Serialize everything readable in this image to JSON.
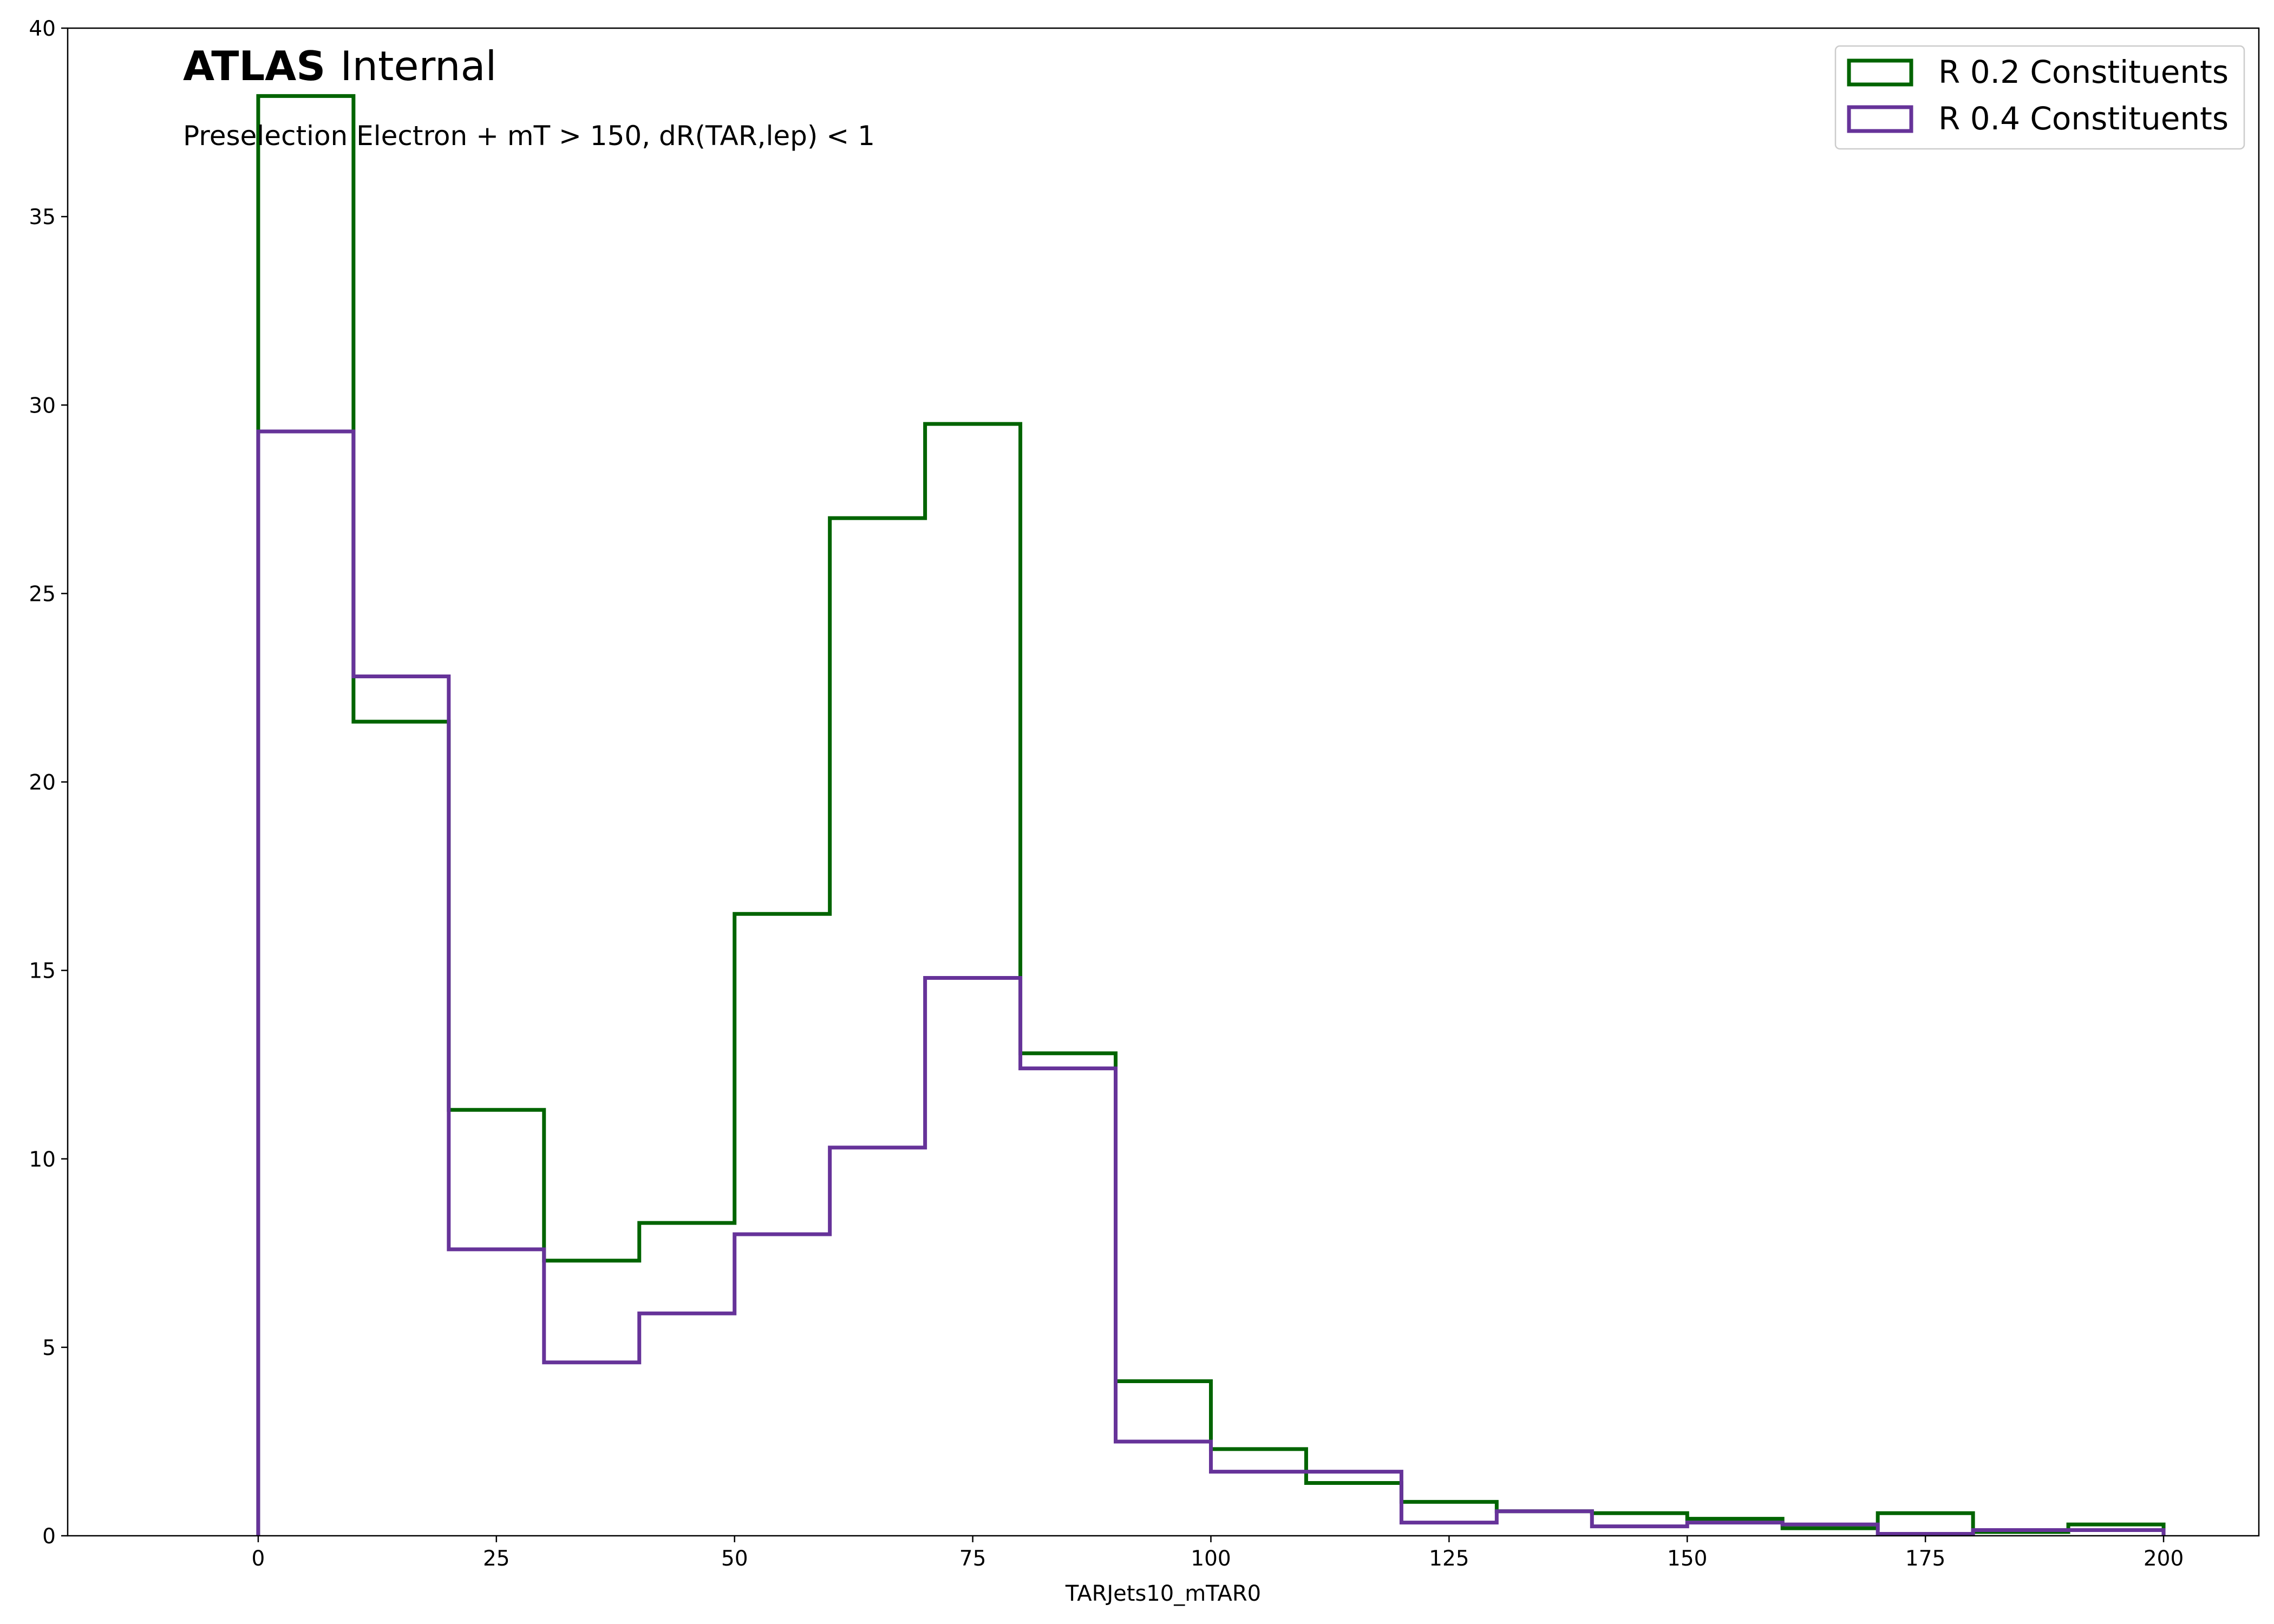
{
  "chart_data": {
    "type": "histogram",
    "title": "",
    "xlabel": "TARJets10_mTAR0",
    "ylabel": "",
    "xlim": [
      -20,
      210
    ],
    "ylim": [
      0,
      40
    ],
    "x_ticks": [
      0,
      25,
      50,
      75,
      100,
      125,
      150,
      175,
      200
    ],
    "y_ticks": [
      0,
      5,
      10,
      15,
      20,
      25,
      30,
      35,
      40
    ],
    "bin_edges": [
      0,
      10,
      20,
      30,
      40,
      50,
      60,
      70,
      80,
      90,
      100,
      110,
      120,
      130,
      140,
      150,
      160,
      170,
      180,
      190,
      200
    ],
    "series": [
      {
        "name": "R 0.2 Constituents",
        "color": "#006400",
        "values": [
          38.2,
          21.6,
          11.3,
          7.3,
          8.3,
          16.5,
          27.0,
          29.5,
          12.8,
          4.1,
          2.3,
          1.4,
          0.9,
          0.65,
          0.6,
          0.45,
          0.2,
          0.6,
          0.1,
          0.3
        ]
      },
      {
        "name": "R 0.4 Constituents",
        "color": "#663399",
        "values": [
          29.3,
          22.8,
          7.6,
          4.6,
          5.9,
          8.0,
          10.3,
          14.8,
          12.4,
          2.5,
          1.7,
          1.7,
          0.35,
          0.65,
          0.25,
          0.35,
          0.3,
          0.05,
          0.15,
          0.15
        ]
      }
    ],
    "annotations": {
      "atlas_bold": "ATLAS",
      "atlas_plain": "Internal",
      "selection": "Preselection Electron + mT > 150, dR(TAR,lep) < 1"
    },
    "legend_position": "top-right",
    "grid": false
  }
}
